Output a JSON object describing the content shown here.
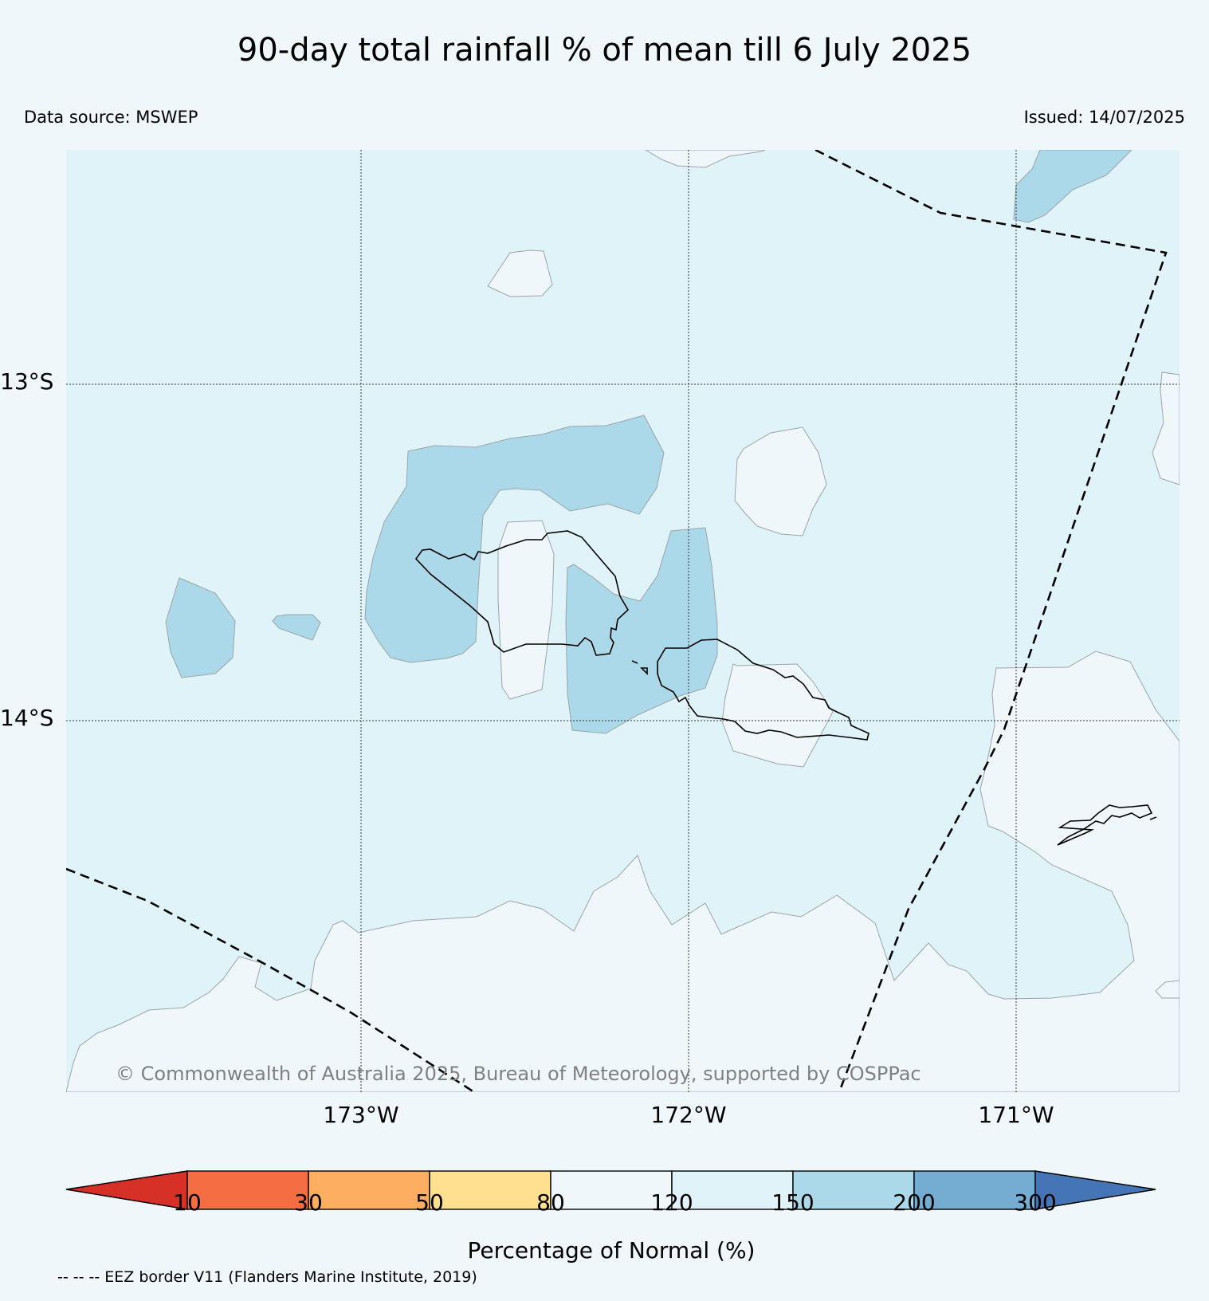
{
  "title": "90-day total rainfall % of mean till 6 July 2025",
  "data_source": "Data source: MSWEP",
  "issued": "Issued: 14/07/2025",
  "copyright": "© Commonwealth of Australia 2025, Bureau of Meteorology, supported by COSPPac",
  "latitude_labels": [
    "13°S",
    "14°S"
  ],
  "longitude_labels": [
    "173°W",
    "172°W",
    "171°W"
  ],
  "colorbar": {
    "title": "Percentage of Normal (%)",
    "ticks": [
      "10",
      "30",
      "50",
      "80",
      "120",
      "150",
      "200",
      "300"
    ],
    "colors": [
      "#d73027",
      "#f46d43",
      "#fdae61",
      "#fee090",
      "#eff7fa",
      "#e0f3f8",
      "#abd9e9",
      "#74add1",
      "#4575b4"
    ]
  },
  "map_colors": {
    "class_80_120": "#eff7fa",
    "class_120_150": "#e0f3f8",
    "class_150_200": "#abd9e9"
  },
  "eez_note": "-- -- -- EEZ border V11 (Flanders Marine Institute, 2019)"
}
